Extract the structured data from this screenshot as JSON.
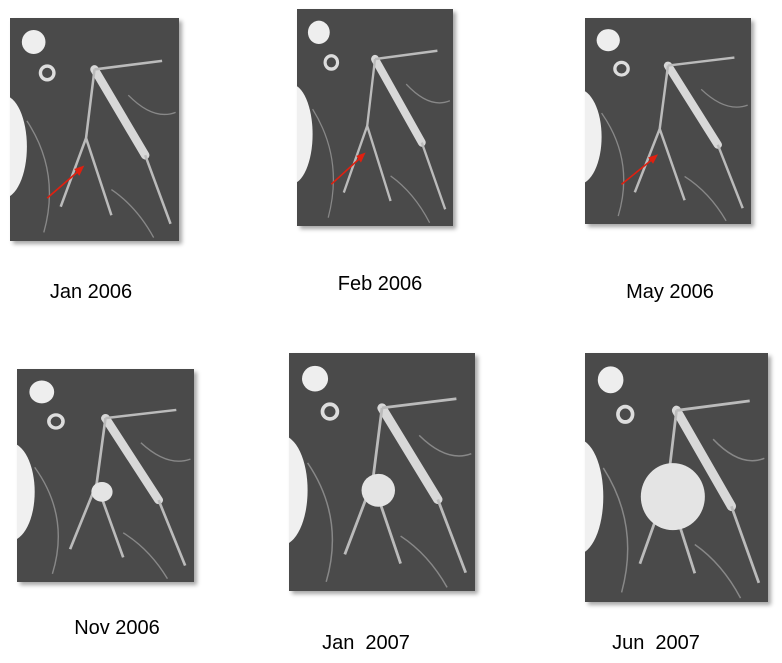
{
  "panels": [
    {
      "label": "Jan 2006",
      "arrow": true,
      "nodule": 0
    },
    {
      "label": "Feb 2006",
      "arrow": true,
      "nodule": 0
    },
    {
      "label": "May 2006",
      "arrow": true,
      "nodule": 0
    },
    {
      "label": "Nov 2006",
      "arrow": false,
      "nodule": 0.12
    },
    {
      "label": "Jan  2007",
      "arrow": false,
      "nodule": 0.18
    },
    {
      "label": "Jun  2007",
      "arrow": false,
      "nodule": 0.35
    }
  ],
  "colors": {
    "arrow": "#e02010",
    "tissue": "#4a4a4a",
    "vessel": "#d8d8d8"
  }
}
